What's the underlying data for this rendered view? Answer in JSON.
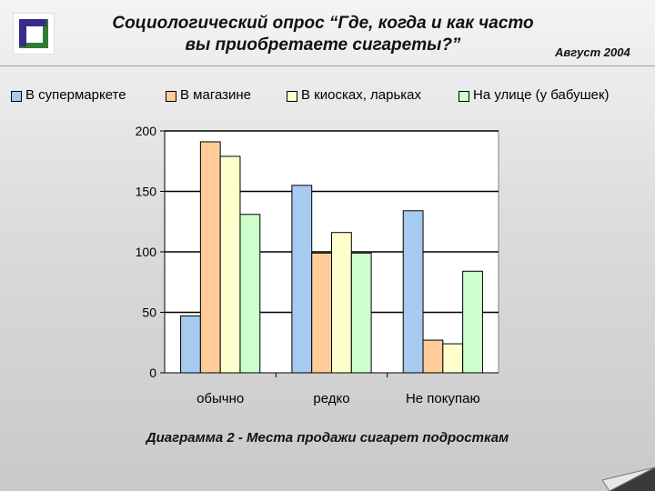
{
  "header": {
    "title_line1": "Социологический опрос “Где, когда и как часто",
    "title_line2": "вы приобретаете сигареты?”",
    "date": "Август 2004"
  },
  "caption": "Диаграмма 2 - Места продажи сигарет подросткам",
  "logo_icon": "framed-square-logo-icon",
  "chart_data": {
    "type": "bar",
    "categories": [
      "обычно",
      "редко",
      "Не покупаю"
    ],
    "series": [
      {
        "name": "В супермаркете",
        "color": "#a6caf0",
        "values": [
          47,
          155,
          134
        ]
      },
      {
        "name": "В магазине",
        "color": "#ffcc99",
        "values": [
          191,
          99,
          27
        ]
      },
      {
        "name": "В киосках, ларьках",
        "color": "#ffffcc",
        "values": [
          179,
          116,
          24
        ]
      },
      {
        "name": "На улице (у бабушек)",
        "color": "#ccffcc",
        "values": [
          131,
          99,
          84
        ]
      }
    ],
    "ylim": [
      0,
      200
    ],
    "yticks": [
      0,
      50,
      100,
      150,
      200
    ],
    "grid": true,
    "legend_position": "top",
    "xlabel": "",
    "ylabel": ""
  }
}
